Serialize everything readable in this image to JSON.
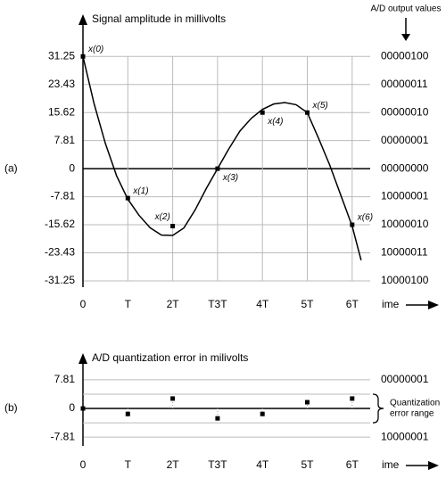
{
  "chart_data": [
    {
      "type": "line",
      "label": "(a)",
      "title": "Signal amplitude in millivolts",
      "right_title": "A/D output values",
      "ylim": [
        -33,
        42
      ],
      "yticks": [
        31.25,
        23.43,
        15.62,
        7.81,
        0,
        -7.81,
        -15.62,
        -23.43,
        -31.25
      ],
      "right_labels": [
        "00000100",
        "00000011",
        "00000010",
        "00000001",
        "00000000",
        "10000001",
        "10000010",
        "10000011",
        "10000100"
      ],
      "categories": [
        "0",
        "T",
        "2T",
        "T3T",
        "4T",
        "5T",
        "6T"
      ],
      "x_axis_label": "ime",
      "sample_labels": [
        "x(0)",
        "x(1)",
        "x(2)",
        "x(3)",
        "x(4)",
        "x(5)",
        "x(6)"
      ],
      "values": [
        31.25,
        -8.2,
        -16,
        0,
        15.62,
        15.62,
        -15.62
      ],
      "curve": {
        "x": [
          0,
          0.25,
          0.5,
          0.75,
          1,
          1.25,
          1.5,
          1.75,
          2,
          2.25,
          2.5,
          2.75,
          3,
          3.25,
          3.5,
          3.75,
          4,
          4.25,
          4.5,
          4.75,
          5,
          5.25,
          5.5,
          5.75,
          6,
          6.2
        ],
        "values": [
          31.25,
          18,
          7,
          -2,
          -8.5,
          -13,
          -16.5,
          -18.5,
          -18.6,
          -16.5,
          -11.5,
          -5.5,
          0,
          5.5,
          10.5,
          14,
          16.5,
          18,
          18.4,
          17.8,
          15.6,
          8.5,
          1,
          -7.5,
          -16,
          -25.5
        ]
      }
    },
    {
      "type": "scatter",
      "label": "(b)",
      "title": "A/D quantization error in milivolts",
      "ylim": [
        -10.2,
        14.1
      ],
      "yticks": [
        7.81,
        0,
        -7.81
      ],
      "right_labels": [
        "00000001",
        null,
        "10000001"
      ],
      "categories": [
        "0",
        "T",
        "2T",
        "T3T",
        "4T",
        "5T",
        "6T"
      ],
      "x_axis_label": "ime",
      "values": [
        0,
        -1.5,
        2.7,
        -2.7,
        -1.5,
        1.7,
        2.7
      ],
      "error_range": [
        -3.9,
        3.9
      ],
      "range_label": [
        "Quantization",
        "error range"
      ]
    }
  ]
}
